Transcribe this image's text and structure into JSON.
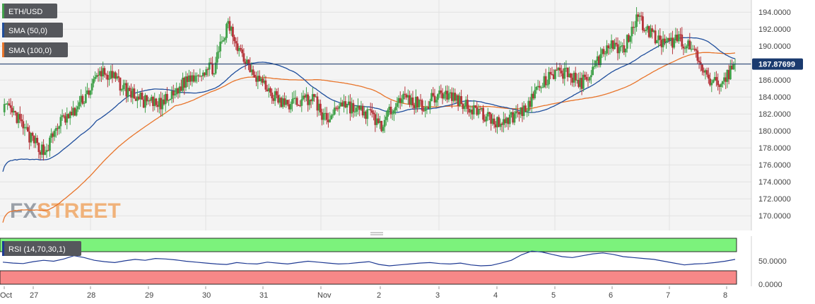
{
  "chart_data": [
    {
      "type": "candlestick",
      "symbol": "ETH/USD",
      "ylim": [
        168.6,
        195.1
      ],
      "y_ticks": [
        170,
        172,
        174,
        176,
        178,
        180,
        182,
        184,
        186,
        188,
        190,
        192,
        194
      ],
      "y_tick_labels": [
        "170.0000",
        "172.0000",
        "174.0000",
        "176.0000",
        "178.0000",
        "180.0000",
        "182.0000",
        "184.0000",
        "186.0000",
        "188.0000",
        "190.0000",
        "192.0000",
        "194.0000"
      ],
      "current_price": 187.87699,
      "current_price_label": "187.87699",
      "x_labels": [
        "Oct",
        "27",
        "28",
        "29",
        "30",
        "31",
        "Nov",
        "2",
        "3",
        "4",
        "5",
        "6",
        "7",
        "8"
      ],
      "grid": true,
      "legend_position": "top-left",
      "colors": {
        "up": "#41a14a",
        "down": "#b5343a",
        "sma50": "#1f4e9c",
        "sma100": "#e8742a",
        "price_line": "#1a3a6e"
      },
      "series": [
        {
          "name": "ETH/USD",
          "candles_close_approx": [
            {
              "date": "Oct 26 00:00",
              "close": 183.0
            },
            {
              "date": "Oct 26 06:00",
              "close": 181.5
            },
            {
              "date": "Oct 26 12:00",
              "close": 179.0
            },
            {
              "date": "Oct 26 18:00",
              "close": 177.5
            },
            {
              "date": "Oct 27 00:00",
              "close": 181.0
            },
            {
              "date": "Oct 27 06:00",
              "close": 182.0
            },
            {
              "date": "Oct 27 12:00",
              "close": 184.5
            },
            {
              "date": "Oct 27 18:00",
              "close": 187.0
            },
            {
              "date": "Oct 28 00:00",
              "close": 186.0
            },
            {
              "date": "Oct 28 06:00",
              "close": 184.5
            },
            {
              "date": "Oct 28 12:00",
              "close": 183.5
            },
            {
              "date": "Oct 28 18:00",
              "close": 183.0
            },
            {
              "date": "Oct 29 00:00",
              "close": 184.0
            },
            {
              "date": "Oct 29 06:00",
              "close": 186.0
            },
            {
              "date": "Oct 29 12:00",
              "close": 187.0
            },
            {
              "date": "Oct 29 18:00",
              "close": 187.5
            },
            {
              "date": "Oct 30 00:00",
              "close": 192.5
            },
            {
              "date": "Oct 30 06:00",
              "close": 189.0
            },
            {
              "date": "Oct 30 12:00",
              "close": 186.5
            },
            {
              "date": "Oct 30 18:00",
              "close": 184.5
            },
            {
              "date": "Oct 31 00:00",
              "close": 183.0
            },
            {
              "date": "Oct 31 06:00",
              "close": 183.5
            },
            {
              "date": "Oct 31 12:00",
              "close": 184.0
            },
            {
              "date": "Oct 31 18:00",
              "close": 181.0
            },
            {
              "date": "Nov 1 00:00",
              "close": 183.5
            },
            {
              "date": "Nov 1 06:00",
              "close": 182.5
            },
            {
              "date": "Nov 1 12:00",
              "close": 182.0
            },
            {
              "date": "Nov 1 18:00",
              "close": 180.5
            },
            {
              "date": "Nov 2 00:00",
              "close": 184.0
            },
            {
              "date": "Nov 2 06:00",
              "close": 183.5
            },
            {
              "date": "Nov 2 12:00",
              "close": 183.0
            },
            {
              "date": "Nov 2 18:00",
              "close": 184.5
            },
            {
              "date": "Nov 3 00:00",
              "close": 184.0
            },
            {
              "date": "Nov 3 06:00",
              "close": 183.0
            },
            {
              "date": "Nov 3 12:00",
              "close": 182.0
            },
            {
              "date": "Nov 3 18:00",
              "close": 181.0
            },
            {
              "date": "Nov 4 00:00",
              "close": 181.5
            },
            {
              "date": "Nov 4 06:00",
              "close": 182.5
            },
            {
              "date": "Nov 4 12:00",
              "close": 185.0
            },
            {
              "date": "Nov 4 18:00",
              "close": 186.5
            },
            {
              "date": "Nov 5 00:00",
              "close": 187.0
            },
            {
              "date": "Nov 5 06:00",
              "close": 185.5
            },
            {
              "date": "Nov 5 12:00",
              "close": 187.5
            },
            {
              "date": "Nov 5 18:00",
              "close": 190.5
            },
            {
              "date": "Nov 6 00:00",
              "close": 189.5
            },
            {
              "date": "Nov 6 06:00",
              "close": 193.5
            },
            {
              "date": "Nov 6 12:00",
              "close": 191.5
            },
            {
              "date": "Nov 6 18:00",
              "close": 190.0
            },
            {
              "date": "Nov 7 00:00",
              "close": 191.0
            },
            {
              "date": "Nov 7 06:00",
              "close": 189.5
            },
            {
              "date": "Nov 7 12:00",
              "close": 186.0
            },
            {
              "date": "Nov 7 18:00",
              "close": 185.5
            },
            {
              "date": "Nov 8 00:00",
              "close": 187.9
            }
          ]
        },
        {
          "name": "SMA (50,0)"
        },
        {
          "name": "SMA (100,0)"
        }
      ]
    },
    {
      "type": "line",
      "indicator": "RSI (14,70,30,1)",
      "ylim": [
        0,
        100
      ],
      "y_ticks": [
        0,
        50
      ],
      "y_tick_labels": [
        "0.0000",
        "50.0000"
      ],
      "overbought": 70,
      "oversold": 30,
      "colors": {
        "line": "#1f3a93",
        "overbought_zone": "#7cf27c",
        "oversold_zone": "#f78888"
      },
      "series": [
        {
          "values_approx": [
            48,
            46,
            45,
            49,
            52,
            50,
            55,
            62,
            58,
            52,
            49,
            47,
            51,
            54,
            52,
            56,
            55,
            53,
            50,
            48,
            46,
            44,
            43,
            47,
            45,
            44,
            48,
            46,
            44,
            47,
            50,
            48,
            46,
            44,
            45,
            47,
            49,
            43,
            40,
            42,
            44,
            46,
            47,
            45,
            44,
            46,
            42,
            40,
            41,
            46,
            52,
            64,
            72,
            70,
            65,
            60,
            58,
            62,
            66,
            68,
            65,
            60,
            58,
            56,
            54,
            50,
            46,
            42,
            44,
            45,
            47,
            50,
            54
          ]
        }
      ]
    }
  ],
  "legend": {
    "symbol_label": "ETH/USD",
    "sma50_label": "SMA (50,0)",
    "sma100_label": "SMA (100,0)",
    "rsi_label": "RSI (14,70,30,1)"
  },
  "watermark": "FXSTREET"
}
